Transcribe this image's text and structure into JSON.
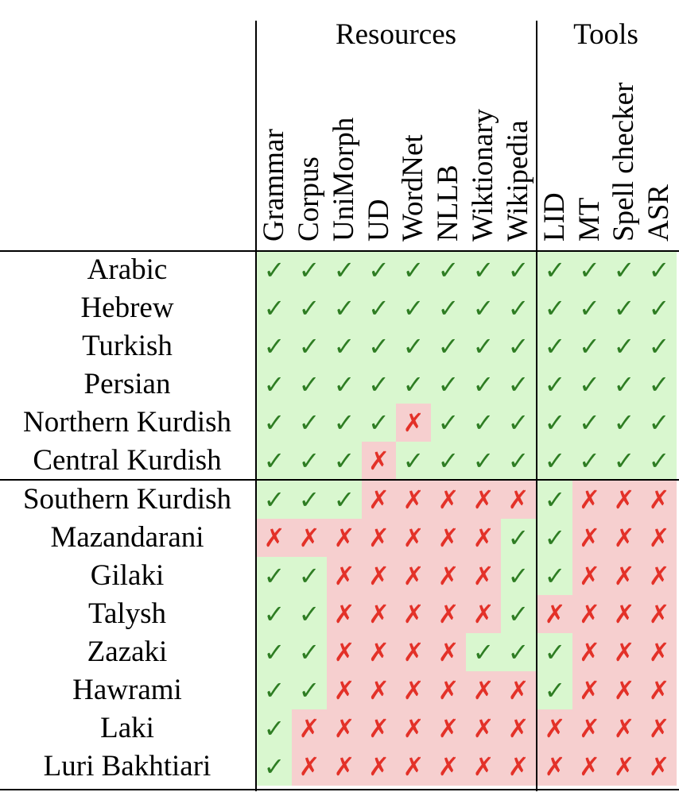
{
  "groups": {
    "resources": "Resources",
    "tools": "Tools"
  },
  "columns": [
    "Grammar",
    "Corpus",
    "UniMorph",
    "UD",
    "WordNet",
    "NLLB",
    "Wiktionary",
    "Wikipedia",
    "LID",
    "MT",
    "Spell checker",
    "ASR"
  ],
  "glyphs": {
    "yes": "✓",
    "no": "✗"
  },
  "colors": {
    "yes_bg": "#d9f7cf",
    "yes_fg": "#2e7d23",
    "no_bg": "#f6cfcf",
    "no_fg": "#e33128"
  },
  "rows": [
    {
      "language": "Arabic",
      "values": [
        1,
        1,
        1,
        1,
        1,
        1,
        1,
        1,
        1,
        1,
        1,
        1
      ]
    },
    {
      "language": "Hebrew",
      "values": [
        1,
        1,
        1,
        1,
        1,
        1,
        1,
        1,
        1,
        1,
        1,
        1
      ]
    },
    {
      "language": "Turkish",
      "values": [
        1,
        1,
        1,
        1,
        1,
        1,
        1,
        1,
        1,
        1,
        1,
        1
      ]
    },
    {
      "language": "Persian",
      "values": [
        1,
        1,
        1,
        1,
        1,
        1,
        1,
        1,
        1,
        1,
        1,
        1
      ]
    },
    {
      "language": "Northern Kurdish",
      "values": [
        1,
        1,
        1,
        1,
        0,
        1,
        1,
        1,
        1,
        1,
        1,
        1
      ]
    },
    {
      "language": "Central Kurdish",
      "values": [
        1,
        1,
        1,
        0,
        1,
        1,
        1,
        1,
        1,
        1,
        1,
        1
      ]
    },
    {
      "language": "Southern Kurdish",
      "values": [
        1,
        1,
        1,
        0,
        0,
        0,
        0,
        0,
        1,
        0,
        0,
        0
      ]
    },
    {
      "language": "Mazandarani",
      "values": [
        0,
        0,
        0,
        0,
        0,
        0,
        0,
        1,
        1,
        0,
        0,
        0
      ]
    },
    {
      "language": "Gilaki",
      "values": [
        1,
        1,
        0,
        0,
        0,
        0,
        0,
        1,
        1,
        0,
        0,
        0
      ]
    },
    {
      "language": "Talysh",
      "values": [
        1,
        1,
        0,
        0,
        0,
        0,
        0,
        1,
        0,
        0,
        0,
        0
      ]
    },
    {
      "language": "Zazaki",
      "values": [
        1,
        1,
        0,
        0,
        0,
        0,
        1,
        1,
        1,
        0,
        0,
        0
      ]
    },
    {
      "language": "Hawrami",
      "values": [
        1,
        1,
        0,
        0,
        0,
        0,
        0,
        0,
        1,
        0,
        0,
        0
      ]
    },
    {
      "language": "Laki",
      "values": [
        1,
        0,
        0,
        0,
        0,
        0,
        0,
        0,
        0,
        0,
        0,
        0
      ]
    },
    {
      "language": "Luri Bakhtiari",
      "values": [
        1,
        0,
        0,
        0,
        0,
        0,
        0,
        0,
        0,
        0,
        0,
        0
      ]
    }
  ]
}
